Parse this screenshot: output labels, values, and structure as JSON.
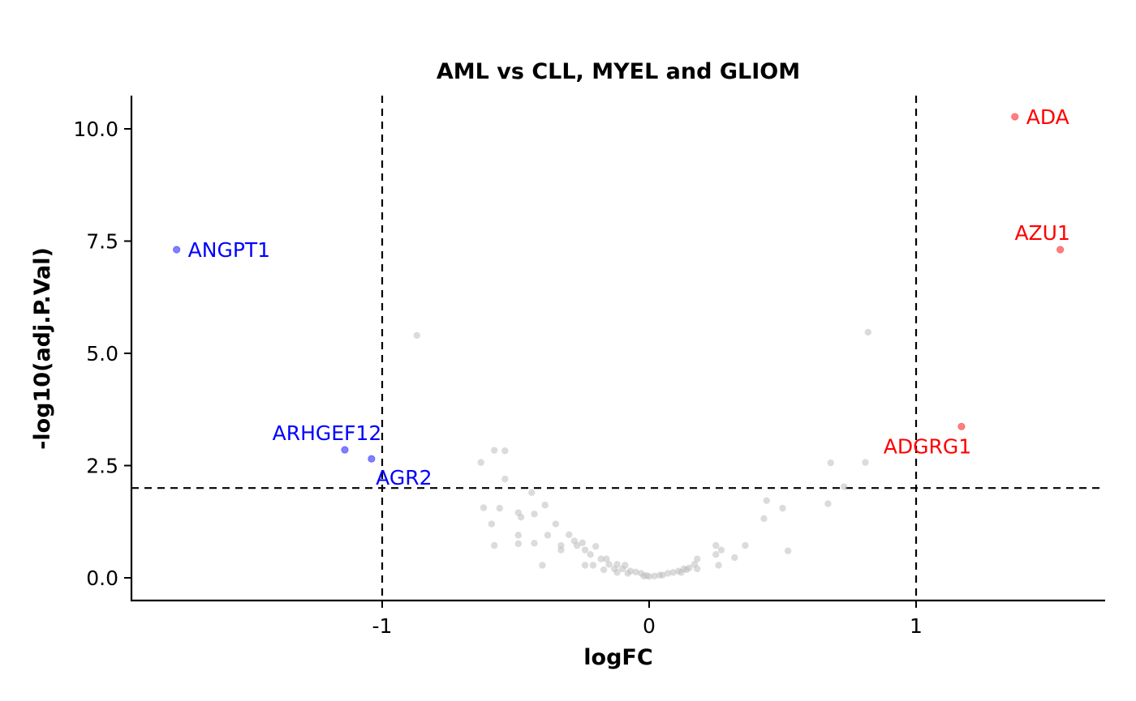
{
  "chart_data": {
    "type": "scatter",
    "title": "AML vs CLL, MYEL and GLIOM",
    "xlabel": "logFC",
    "ylabel": "-log10(adj.P.Val)",
    "xlim": [
      -1.95,
      1.7
    ],
    "ylim": [
      -0.5,
      10.75
    ],
    "x_ticks": [
      {
        "value": -1,
        "label": "-1"
      },
      {
        "value": 0,
        "label": "0"
      },
      {
        "value": 1,
        "label": "1"
      }
    ],
    "y_ticks": [
      {
        "value": 0,
        "label": "0.0"
      },
      {
        "value": 2.5,
        "label": "2.5"
      },
      {
        "value": 5,
        "label": "5.0"
      },
      {
        "value": 7.5,
        "label": "7.5"
      },
      {
        "value": 10,
        "label": "10.0"
      }
    ],
    "thresholds": {
      "logFC": [
        -1,
        1
      ],
      "neg_log10_adj_p": 2
    },
    "colors": {
      "up": "#ff0000",
      "down": "#0000ff",
      "ns": "#bebebe"
    },
    "labeled_points": [
      {
        "label": "ADA",
        "x": 1.37,
        "y": 10.27,
        "group": "up",
        "label_side": "right"
      },
      {
        "label": "AZU1",
        "x": 1.54,
        "y": 7.31,
        "group": "up",
        "label_side": "above"
      },
      {
        "label": "ADGRG1",
        "x": 1.17,
        "y": 3.37,
        "group": "up",
        "label_side": "below-left"
      },
      {
        "label": "ANGPT1",
        "x": -1.77,
        "y": 7.31,
        "group": "down",
        "label_side": "right"
      },
      {
        "label": "ARHGEF12",
        "x": -1.14,
        "y": 2.85,
        "group": "down",
        "label_side": "above"
      },
      {
        "label": "AGR2",
        "x": -1.04,
        "y": 2.65,
        "group": "down",
        "label_side": "below"
      }
    ],
    "background_points": [
      [
        -0.87,
        5.4
      ],
      [
        0.82,
        5.47
      ],
      [
        0.81,
        2.57
      ],
      [
        0.68,
        2.56
      ],
      [
        0.73,
        2.03
      ],
      [
        -0.63,
        2.57
      ],
      [
        -0.58,
        2.84
      ],
      [
        -0.54,
        2.83
      ],
      [
        -0.54,
        2.2
      ],
      [
        -0.44,
        1.9
      ],
      [
        -0.62,
        1.56
      ],
      [
        -0.56,
        1.55
      ],
      [
        -0.49,
        1.45
      ],
      [
        -0.48,
        1.35
      ],
      [
        -0.43,
        1.42
      ],
      [
        -0.39,
        1.62
      ],
      [
        -0.59,
        1.2
      ],
      [
        -0.35,
        1.2
      ],
      [
        -0.49,
        0.95
      ],
      [
        -0.38,
        0.95
      ],
      [
        -0.58,
        0.72
      ],
      [
        -0.49,
        0.76
      ],
      [
        -0.43,
        0.77
      ],
      [
        -0.33,
        0.72
      ],
      [
        -0.33,
        0.62
      ],
      [
        -0.4,
        0.28
      ],
      [
        -0.3,
        0.96
      ],
      [
        -0.28,
        0.82
      ],
      [
        -0.27,
        0.72
      ],
      [
        -0.25,
        0.78
      ],
      [
        -0.24,
        0.62
      ],
      [
        -0.22,
        0.52
      ],
      [
        -0.2,
        0.7
      ],
      [
        -0.18,
        0.42
      ],
      [
        -0.16,
        0.42
      ],
      [
        -0.24,
        0.28
      ],
      [
        -0.21,
        0.28
      ],
      [
        -0.15,
        0.3
      ],
      [
        -0.12,
        0.3
      ],
      [
        -0.09,
        0.28
      ],
      [
        -0.17,
        0.18
      ],
      [
        -0.13,
        0.2
      ],
      [
        -0.1,
        0.2
      ],
      [
        -0.07,
        0.15
      ],
      [
        -0.05,
        0.13
      ],
      [
        -0.03,
        0.1
      ],
      [
        -0.12,
        0.12
      ],
      [
        -0.08,
        0.1
      ],
      [
        -0.02,
        0.04
      ],
      [
        0.0,
        0.03
      ],
      [
        0.02,
        0.04
      ],
      [
        0.05,
        0.06
      ],
      [
        0.07,
        0.1
      ],
      [
        0.09,
        0.12
      ],
      [
        0.11,
        0.15
      ],
      [
        0.12,
        0.12
      ],
      [
        0.14,
        0.18
      ],
      [
        0.15,
        0.22
      ],
      [
        0.17,
        0.3
      ],
      [
        0.18,
        0.42
      ],
      [
        0.13,
        0.2
      ],
      [
        0.18,
        0.2
      ],
      [
        0.25,
        0.52
      ],
      [
        0.25,
        0.72
      ],
      [
        0.27,
        0.62
      ],
      [
        0.26,
        0.28
      ],
      [
        0.32,
        0.45
      ],
      [
        0.36,
        0.72
      ],
      [
        0.43,
        1.32
      ],
      [
        0.44,
        1.72
      ],
      [
        0.5,
        1.55
      ],
      [
        0.52,
        0.6
      ],
      [
        0.67,
        1.65
      ],
      [
        0.04,
        0.06
      ],
      [
        -0.01,
        0.05
      ]
    ]
  }
}
